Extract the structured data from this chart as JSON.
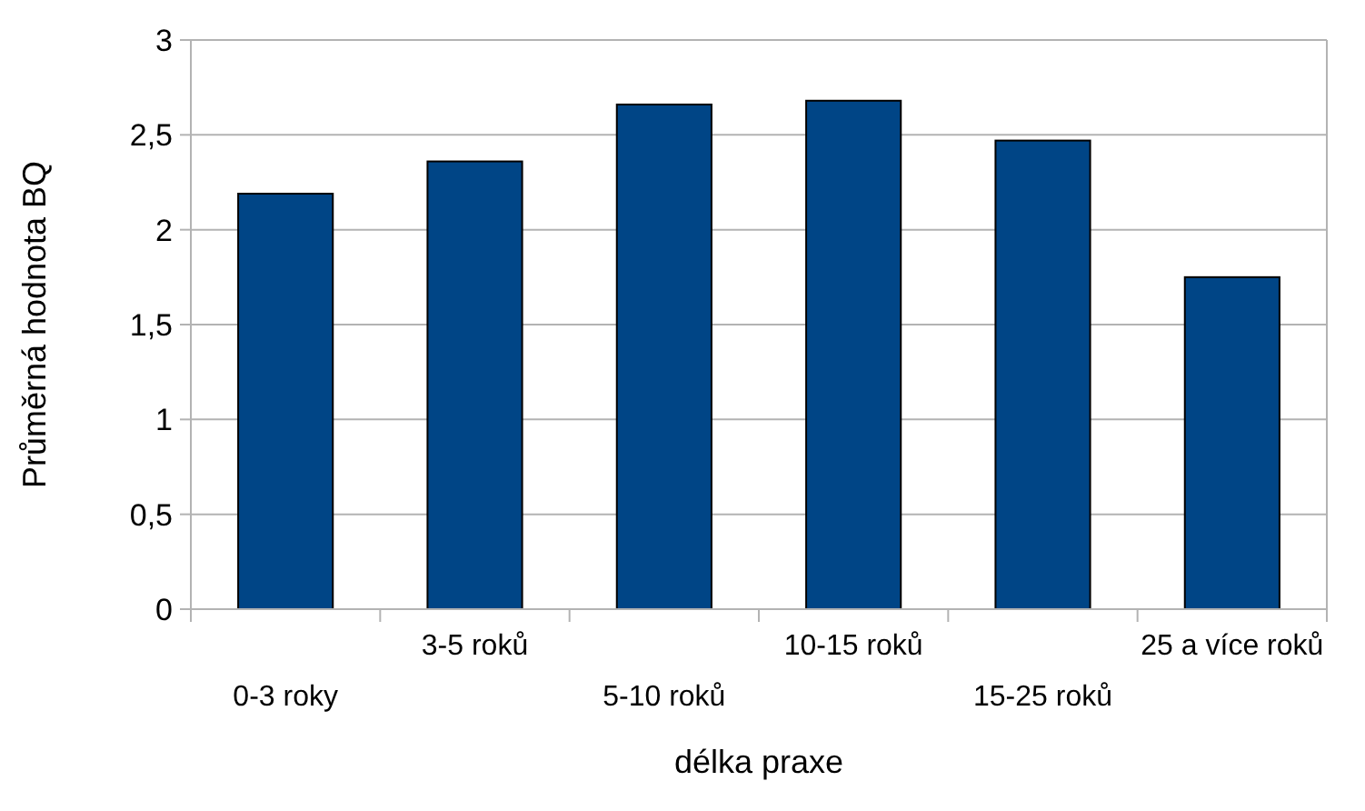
{
  "chart_data": {
    "type": "bar",
    "xlabel": "délka praxe",
    "ylabel": "Průměrná hodnota BQ",
    "categories": [
      "0-3 roky",
      "3-5 roků",
      "5-10 roků",
      "10-15 roků",
      "15-25 roků",
      "25 a více roků"
    ],
    "values": [
      2.19,
      2.36,
      2.66,
      2.68,
      2.47,
      1.75
    ],
    "color": "#004586",
    "ylim": [
      0,
      3
    ],
    "yticks": [
      0,
      {
        "value": 0.5,
        "label": "0,5"
      },
      1,
      {
        "value": 1.5,
        "label": "1,5"
      },
      2,
      {
        "value": 2.5,
        "label": "2,5"
      },
      3
    ],
    "grid": "y"
  }
}
